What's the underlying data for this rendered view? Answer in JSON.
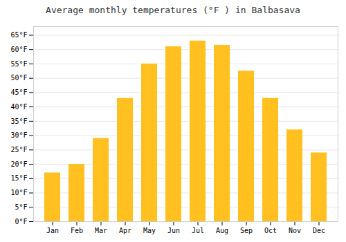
{
  "chart_data": {
    "type": "bar",
    "title": "Average monthly temperatures (°F ) in Balbasava",
    "categories": [
      "Jan",
      "Feb",
      "Mar",
      "Apr",
      "May",
      "Jun",
      "Jul",
      "Aug",
      "Sep",
      "Oct",
      "Nov",
      "Dec"
    ],
    "values": [
      17,
      20,
      29,
      43,
      55,
      61,
      63,
      61.5,
      52.5,
      43,
      32,
      24
    ],
    "color": "#FFC020",
    "ylim": [
      0,
      68
    ],
    "yticks": [
      {
        "value": 0,
        "label": "0°F"
      },
      {
        "value": 5,
        "label": "5°F"
      },
      {
        "value": 10,
        "label": "10°F"
      },
      {
        "value": 15,
        "label": "15°F"
      },
      {
        "value": 20,
        "label": "20°F"
      },
      {
        "value": 25,
        "label": "25°F"
      },
      {
        "value": 30,
        "label": "30°F"
      },
      {
        "value": 35,
        "label": "35°F"
      },
      {
        "value": 40,
        "label": "40°F"
      },
      {
        "value": 45,
        "label": "45°F"
      },
      {
        "value": 50,
        "label": "50°F"
      },
      {
        "value": 55,
        "label": "55°F"
      },
      {
        "value": 60,
        "label": "60°F"
      },
      {
        "value": 65,
        "label": "65°F"
      }
    ],
    "grid": true
  }
}
